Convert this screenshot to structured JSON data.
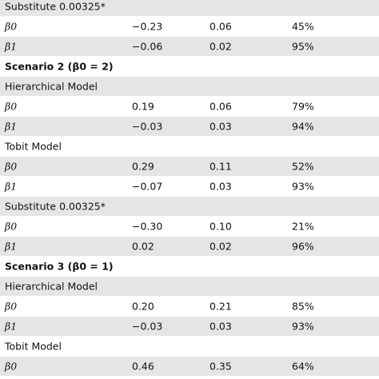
{
  "table": {
    "rows": [
      {
        "label": "Substitute 0.00325*"
      },
      {
        "label": "β0",
        "values": [
          "−0.23",
          "0.06",
          "45%"
        ]
      },
      {
        "label": "β1",
        "values": [
          "−0.06",
          "0.02",
          "95%"
        ]
      },
      {
        "heading": "Scenario 2 (β0 = 2)"
      },
      {
        "label": "Hierarchical Model"
      },
      {
        "label": "β0",
        "values": [
          "0.19",
          "0.06",
          "79%"
        ]
      },
      {
        "label": "β1",
        "values": [
          "−0.03",
          "0.03",
          "94%"
        ]
      },
      {
        "label": "Tobit Model"
      },
      {
        "label": "β0",
        "values": [
          "0.29",
          "0.11",
          "52%"
        ]
      },
      {
        "label": "β1",
        "values": [
          "−0.07",
          "0.03",
          "93%"
        ]
      },
      {
        "label": "Substitute 0.00325*"
      },
      {
        "label": "β0",
        "values": [
          "−0.30",
          "0.10",
          "21%"
        ]
      },
      {
        "label": "β1",
        "values": [
          "0.02",
          "0.02",
          "96%"
        ]
      },
      {
        "heading": "Scenario 3 (β0 = 1)"
      },
      {
        "label": "Hierarchical Model"
      },
      {
        "label": "β0",
        "values": [
          "0.20",
          "0.21",
          "85%"
        ]
      },
      {
        "label": "β1",
        "values": [
          "−0.03",
          "0.03",
          "93%"
        ]
      },
      {
        "label": "Tobit Model"
      },
      {
        "label": "β0",
        "values": [
          "0.46",
          "0.35",
          "64%"
        ]
      }
    ]
  }
}
